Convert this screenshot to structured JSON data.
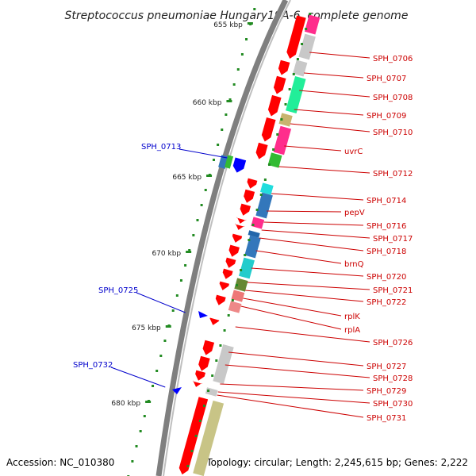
{
  "header": {
    "title": "Streptococcus pneumoniae Hungary19A-6, complete genome"
  },
  "footer": {
    "accession": "Accession: NC_010380",
    "summary": "Topology: circular; Length: 2,245,615 bp; Genes: 2,222"
  },
  "colors": {
    "backbone": "#7f7f7f",
    "gene_forward": "#ff0000",
    "gene_reverse": "#0000ff",
    "label_right": "#cc0000",
    "label_left": "#0000cc",
    "scale": "#228B22"
  },
  "scale_ticks": [
    "655 kbp",
    "660 kbp",
    "665 kbp",
    "670 kbp",
    "675 kbp",
    "680 kbp"
  ],
  "right_labels": [
    "SPH_0706",
    "SPH_0707",
    "SPH_0708",
    "SPH_0709",
    "SPH_0710",
    "uvrC",
    "SPH_0712",
    "SPH_0714",
    "pepV",
    "SPH_0716",
    "SPH_0717",
    "SPH_0718",
    "brnQ",
    "SPH_0720",
    "SPH_0721",
    "SPH_0722",
    "rplK",
    "rplA",
    "SPH_0726",
    "SPH_0727",
    "SPH_0728",
    "SPH_0729",
    "SPH_0730",
    "SPH_0731"
  ],
  "left_labels": [
    "SPH_0713",
    "SPH_0725",
    "SPH_0732"
  ]
}
